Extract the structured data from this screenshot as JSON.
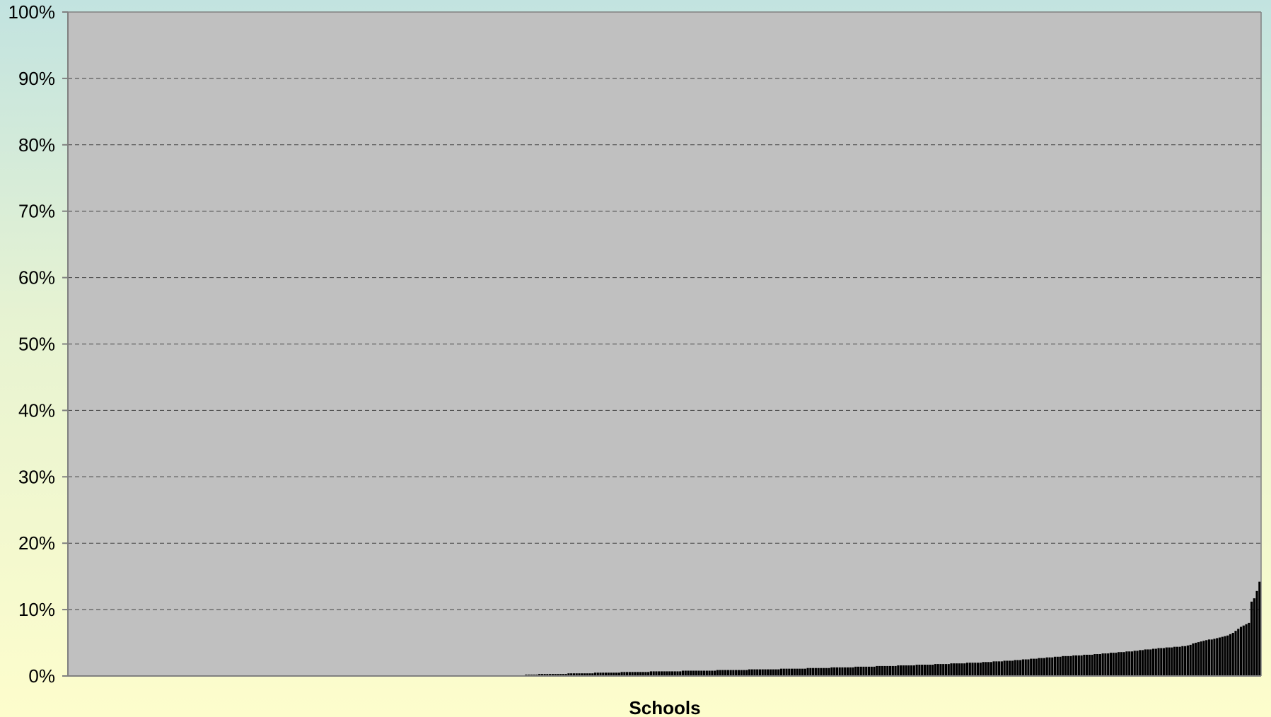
{
  "chart_data": {
    "type": "bar",
    "xlabel": "Schools",
    "ylabel": "",
    "ylim": [
      0,
      100
    ],
    "y_unit": "%",
    "y_ticks": [
      "0%",
      "10%",
      "20%",
      "30%",
      "40%",
      "50%",
      "60%",
      "70%",
      "80%",
      "90%",
      "100%"
    ],
    "grid": "horizontal dashed",
    "sorted": "ascending",
    "series_count": 1,
    "colors": {
      "plot_bg": "#c0c0c0",
      "bar": "#000000",
      "grid": "#404040",
      "axis": "#808080"
    },
    "zero_value_schools": 172,
    "values": [
      0.2,
      0.2,
      0.2,
      0.2,
      0.2,
      0.3,
      0.3,
      0.3,
      0.3,
      0.3,
      0.3,
      0.3,
      0.3,
      0.3,
      0.3,
      0.3,
      0.4,
      0.4,
      0.4,
      0.4,
      0.4,
      0.4,
      0.4,
      0.4,
      0.4,
      0.4,
      0.5,
      0.5,
      0.5,
      0.5,
      0.5,
      0.5,
      0.5,
      0.5,
      0.5,
      0.5,
      0.6,
      0.6,
      0.6,
      0.6,
      0.6,
      0.6,
      0.6,
      0.6,
      0.6,
      0.6,
      0.6,
      0.7,
      0.7,
      0.7,
      0.7,
      0.7,
      0.7,
      0.7,
      0.7,
      0.7,
      0.7,
      0.7,
      0.7,
      0.8,
      0.8,
      0.8,
      0.8,
      0.8,
      0.8,
      0.8,
      0.8,
      0.8,
      0.8,
      0.8,
      0.8,
      0.8,
      0.9,
      0.9,
      0.9,
      0.9,
      0.9,
      0.9,
      0.9,
      0.9,
      0.9,
      0.9,
      0.9,
      0.9,
      1.0,
      1.0,
      1.0,
      1.0,
      1.0,
      1.0,
      1.0,
      1.0,
      1.0,
      1.0,
      1.0,
      1.0,
      1.1,
      1.1,
      1.1,
      1.1,
      1.1,
      1.1,
      1.1,
      1.1,
      1.1,
      1.1,
      1.2,
      1.2,
      1.2,
      1.2,
      1.2,
      1.2,
      1.2,
      1.2,
      1.2,
      1.3,
      1.3,
      1.3,
      1.3,
      1.3,
      1.3,
      1.3,
      1.3,
      1.3,
      1.4,
      1.4,
      1.4,
      1.4,
      1.4,
      1.4,
      1.4,
      1.4,
      1.5,
      1.5,
      1.5,
      1.5,
      1.5,
      1.5,
      1.5,
      1.5,
      1.6,
      1.6,
      1.6,
      1.6,
      1.6,
      1.6,
      1.6,
      1.7,
      1.7,
      1.7,
      1.7,
      1.7,
      1.7,
      1.7,
      1.8,
      1.8,
      1.8,
      1.8,
      1.8,
      1.8,
      1.9,
      1.9,
      1.9,
      1.9,
      1.9,
      1.9,
      2.0,
      2.0,
      2.0,
      2.0,
      2.0,
      2.0,
      2.1,
      2.1,
      2.1,
      2.1,
      2.2,
      2.2,
      2.2,
      2.2,
      2.3,
      2.3,
      2.3,
      2.3,
      2.4,
      2.4,
      2.4,
      2.5,
      2.5,
      2.5,
      2.6,
      2.6,
      2.6,
      2.7,
      2.7,
      2.7,
      2.8,
      2.8,
      2.8,
      2.9,
      2.9,
      2.9,
      3.0,
      3.0,
      3.0,
      3.0,
      3.1,
      3.1,
      3.1,
      3.1,
      3.2,
      3.2,
      3.2,
      3.2,
      3.3,
      3.3,
      3.3,
      3.4,
      3.4,
      3.4,
      3.5,
      3.5,
      3.5,
      3.6,
      3.6,
      3.6,
      3.7,
      3.7,
      3.7,
      3.8,
      3.8,
      3.9,
      3.9,
      4.0,
      4.0,
      4.0,
      4.1,
      4.1,
      4.2,
      4.2,
      4.2,
      4.3,
      4.3,
      4.3,
      4.4,
      4.4,
      4.4,
      4.5,
      4.5,
      4.6,
      4.7,
      4.9,
      5.0,
      5.1,
      5.2,
      5.3,
      5.4,
      5.5,
      5.5,
      5.6,
      5.7,
      5.8,
      5.9,
      6.0,
      6.1,
      6.3,
      6.5,
      6.8,
      7.1,
      7.4,
      7.6,
      7.8,
      8.0,
      11.2,
      11.7,
      12.8,
      14.2
    ]
  }
}
